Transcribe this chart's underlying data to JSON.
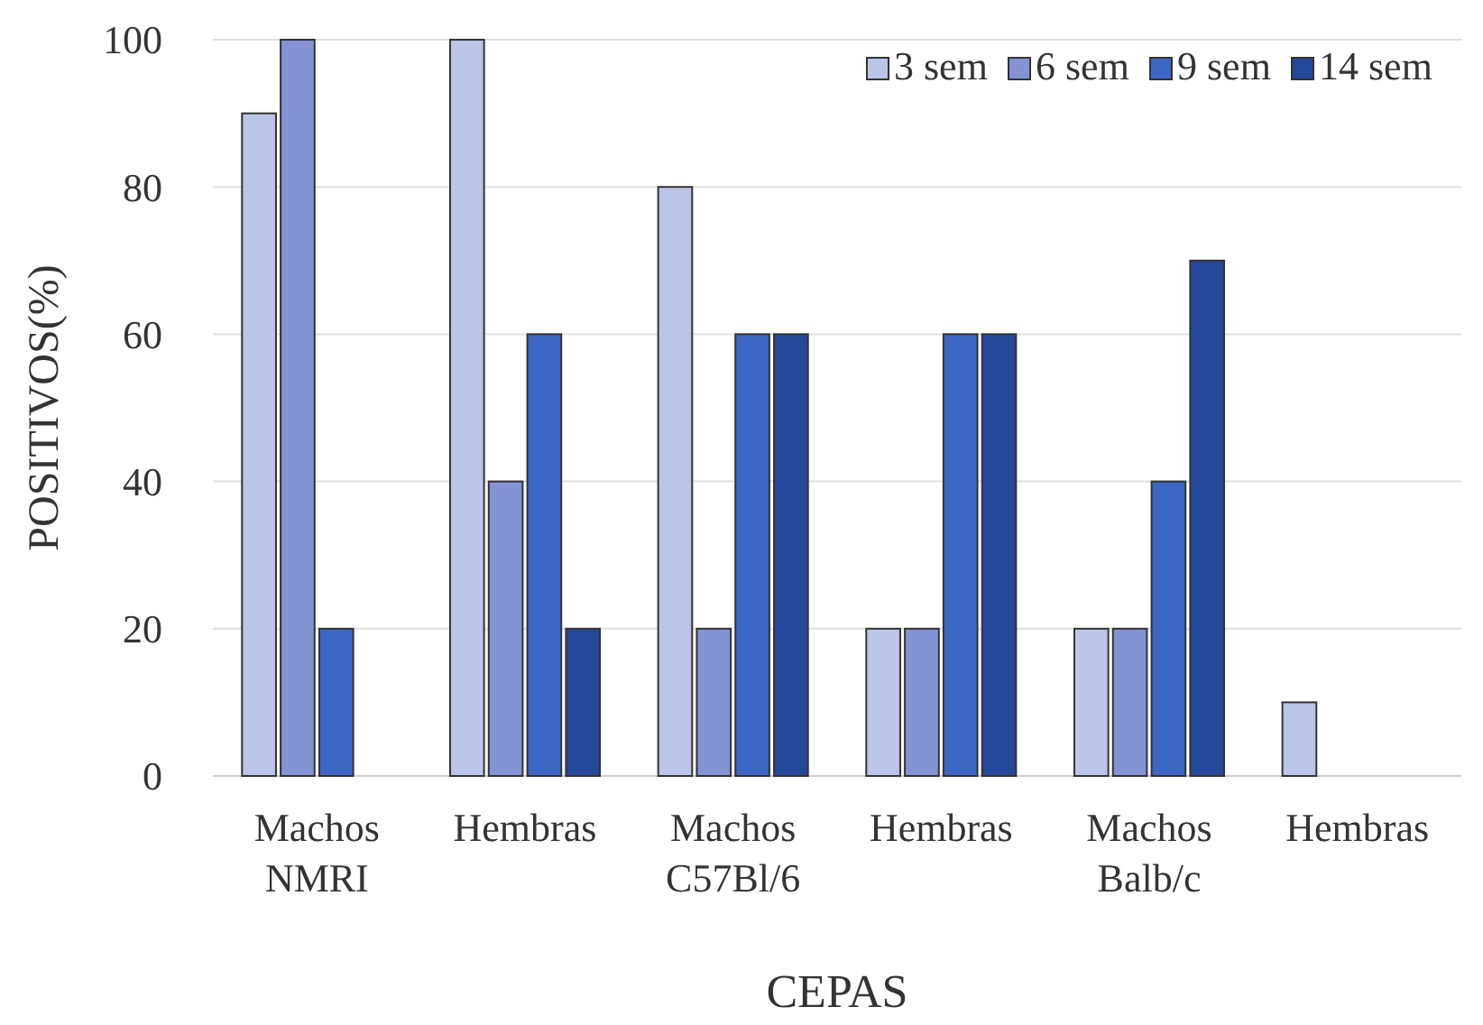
{
  "chart_data": {
    "type": "bar",
    "xlabel": "CEPAS",
    "ylabel": "POSITIVOS(%)",
    "categories": [
      "Machos\nNMRI",
      "Hembras",
      "Machos\nC57Bl/6",
      "Hembras",
      "Machos\nBalb/c",
      "Hembras"
    ],
    "series": [
      {
        "name": "3 sem",
        "color": "#bcc5e8",
        "values": [
          90,
          100,
          80,
          20,
          20,
          10
        ]
      },
      {
        "name": "6 sem",
        "color": "#8393d4",
        "values": [
          100,
          40,
          20,
          20,
          20,
          null
        ]
      },
      {
        "name": "9 sem",
        "color": "#3c66c4",
        "values": [
          20,
          60,
          60,
          60,
          40,
          null
        ]
      },
      {
        "name": "14 sem",
        "color": "#24479a",
        "values": [
          null,
          20,
          60,
          60,
          70,
          null
        ]
      }
    ],
    "ylim": [
      0,
      100
    ],
    "yticks": [
      0,
      20,
      40,
      60,
      80,
      100
    ],
    "grid": "y",
    "legend": "top right"
  }
}
